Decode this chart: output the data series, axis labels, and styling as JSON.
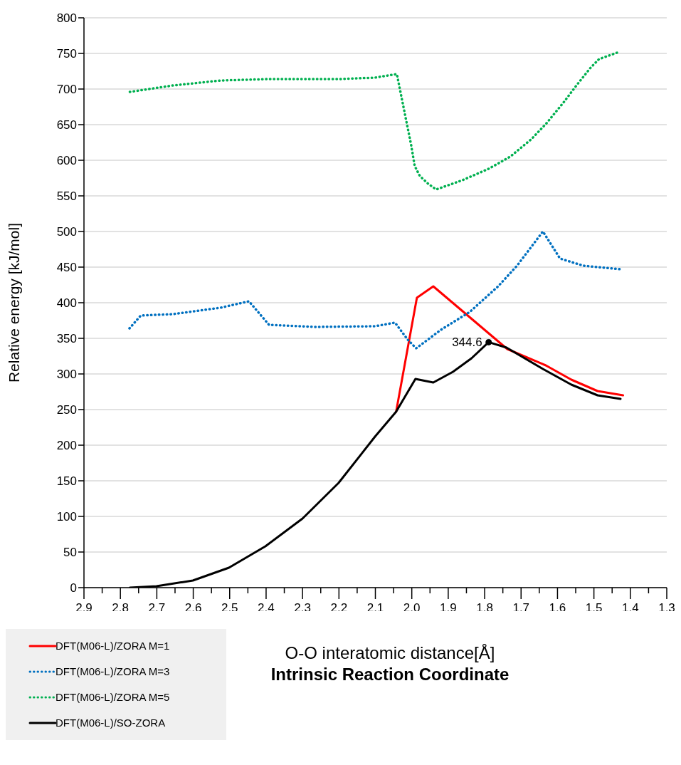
{
  "chart_data": {
    "type": "line",
    "xlabel": "O-O interatomic distance[Å]",
    "ylabel": "Relative energy [kJ/mol]",
    "annotations": [
      {
        "text": "344.6",
        "x": 1.789,
        "y": 344.6
      },
      "Intrinsic Reaction Coordinate"
    ],
    "xlim": [
      2.9,
      1.3
    ],
    "xticks": [
      2.9,
      {
        "value": 2.85,
        "label": null
      },
      2.8,
      {
        "value": 2.75,
        "label": null
      },
      2.7,
      {
        "value": 2.65,
        "label": null
      },
      2.6,
      {
        "value": 2.55,
        "label": null
      },
      2.5,
      {
        "value": 2.45,
        "label": null
      },
      2.4,
      {
        "value": 2.35,
        "label": null
      },
      2.3,
      {
        "value": 2.25,
        "label": null
      },
      2.2,
      {
        "value": 2.15,
        "label": null
      },
      2.1,
      {
        "value": 2.05,
        "label": null
      },
      {
        "value": 2,
        "label": "2.0"
      },
      {
        "value": 1.95,
        "label": null
      },
      1.9,
      {
        "value": 1.85,
        "label": null
      },
      1.8,
      {
        "value": 1.75,
        "label": null
      },
      1.7,
      {
        "value": 1.65,
        "label": null
      },
      1.6,
      {
        "value": 1.55,
        "label": null
      },
      1.5,
      {
        "value": 1.45,
        "label": null
      },
      1.4,
      {
        "value": 1.35,
        "label": null
      },
      1.3
    ],
    "ylim": [
      0,
      800
    ],
    "yticks": [
      0,
      50,
      100,
      150,
      200,
      250,
      300,
      350,
      400,
      450,
      500,
      550,
      600,
      650,
      700,
      750,
      800
    ],
    "grid": "y",
    "legend": "bottom left",
    "marker": "none",
    "series": [
      {
        "name": "DFT(M06-L)/ZORA M=1",
        "color": "#ff0000",
        "line_style": "solid",
        "x": [
          2.043,
          1.986,
          1.941,
          1.738,
          1.632,
          1.562,
          1.49,
          1.42
        ],
        "values": [
          247,
          407,
          423,
          335,
          312,
          292,
          276,
          270
        ]
      },
      {
        "name": "DFT(M06-L)/ZORA M=3",
        "color": "#0070c0",
        "line_style": "dotted",
        "x": [
          2.775,
          2.744,
          2.656,
          2.525,
          2.447,
          2.392,
          2.265,
          2.101,
          2.046,
          2.011,
          1.988,
          1.92,
          1.841,
          1.763,
          1.711,
          1.64,
          1.593,
          1.529,
          1.427
        ],
        "values": [
          364,
          382,
          384,
          393,
          402,
          369,
          366,
          367,
          372,
          348,
          336,
          362,
          387,
          423,
          452,
          500,
          462,
          452,
          447
        ]
      },
      {
        "name": "DFT(M06-L)/ZORA M=5",
        "color": "#00b050",
        "line_style": "dotted",
        "x": [
          2.774,
          2.656,
          2.525,
          2.394,
          2.199,
          2.101,
          2.041,
          2.017,
          2.002,
          1.992,
          1.978,
          1.955,
          1.933,
          1.861,
          1.789,
          1.73,
          1.671,
          1.63,
          1.582,
          1.548,
          1.509,
          1.486,
          1.431
        ],
        "values": [
          696,
          705,
          712,
          714,
          714,
          716,
          721,
          660,
          622,
          592,
          578,
          567,
          559,
          572,
          588,
          605,
          630,
          652,
          682,
          705,
          730,
          742,
          752
        ]
      },
      {
        "name": "DFT(M06-L)/SO-ZORA",
        "color": "#000000",
        "line_style": "solid",
        "x": [
          2.774,
          2.701,
          2.601,
          2.502,
          2.402,
          2.3,
          2.201,
          2.101,
          2.043,
          1.99,
          1.941,
          1.887,
          1.836,
          1.789,
          1.74,
          1.64,
          1.562,
          1.49,
          1.427
        ],
        "values": [
          0,
          2,
          10,
          28,
          58,
          97,
          147,
          212,
          247,
          293,
          288,
          303,
          322,
          344.6,
          337,
          307,
          285,
          270,
          265
        ]
      }
    ]
  }
}
